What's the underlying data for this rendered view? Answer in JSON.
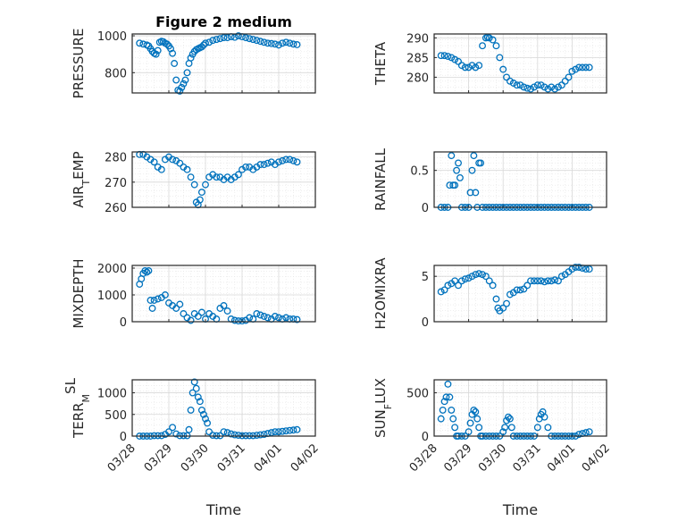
{
  "figure": {
    "title": "Figure 2 medium",
    "marker_color": "#0072bd"
  },
  "chart_data": [
    {
      "type": "scatter",
      "title": "Figure 2 medium",
      "ylabel": "PRESSURE",
      "ylabel_html": "PRESSURE",
      "xlabel": "",
      "ylim": [
        690,
        1010
      ],
      "yticks": [
        800,
        1000
      ],
      "xlim": [
        0,
        5
      ],
      "grid": true,
      "x": [
        0.2,
        0.3,
        0.4,
        0.45,
        0.5,
        0.55,
        0.6,
        0.65,
        0.7,
        0.75,
        0.8,
        0.85,
        0.9,
        0.95,
        1.0,
        1.05,
        1.1,
        1.15,
        1.2,
        1.25,
        1.3,
        1.35,
        1.4,
        1.45,
        1.5,
        1.55,
        1.6,
        1.65,
        1.7,
        1.75,
        1.8,
        1.85,
        1.9,
        1.95,
        2.0,
        2.1,
        2.2,
        2.3,
        2.4,
        2.5,
        2.6,
        2.7,
        2.8,
        2.9,
        3.0,
        3.1,
        3.2,
        3.3,
        3.4,
        3.5,
        3.6,
        3.7,
        3.8,
        3.9,
        4.0,
        4.1,
        4.2,
        4.3,
        4.4,
        4.5
      ],
      "y": [
        960,
        955,
        950,
        945,
        930,
        915,
        905,
        900,
        920,
        965,
        970,
        968,
        960,
        955,
        945,
        930,
        905,
        850,
        760,
        705,
        700,
        720,
        740,
        760,
        800,
        850,
        880,
        900,
        915,
        925,
        930,
        935,
        940,
        950,
        960,
        965,
        975,
        980,
        985,
        990,
        990,
        995,
        992,
        1000,
        995,
        990,
        985,
        980,
        975,
        970,
        965,
        960,
        958,
        955,
        950,
        960,
        965,
        960,
        955,
        952
      ]
    },
    {
      "type": "scatter",
      "ylabel": "THETA",
      "ylabel_html": "THETA",
      "xlabel": "",
      "ylim": [
        276,
        291
      ],
      "yticks": [
        280,
        285,
        290
      ],
      "xlim": [
        0,
        5
      ],
      "grid": true,
      "x": [
        0.2,
        0.3,
        0.4,
        0.5,
        0.6,
        0.7,
        0.8,
        0.9,
        1.0,
        1.1,
        1.2,
        1.3,
        1.4,
        1.5,
        1.55,
        1.6,
        1.7,
        1.8,
        1.9,
        2.0,
        2.1,
        2.2,
        2.3,
        2.4,
        2.5,
        2.6,
        2.7,
        2.8,
        2.9,
        3.0,
        3.1,
        3.2,
        3.3,
        3.4,
        3.5,
        3.6,
        3.7,
        3.8,
        3.9,
        4.0,
        4.1,
        4.2,
        4.3,
        4.4,
        4.5
      ],
      "y": [
        285.5,
        285.5,
        285.3,
        285,
        284.5,
        284,
        283,
        282.5,
        282.5,
        283,
        282.5,
        283,
        288,
        290,
        290.2,
        290,
        289.5,
        288,
        285,
        282,
        280,
        279,
        278.5,
        278,
        278,
        277.5,
        277.2,
        277,
        277.5,
        278,
        278,
        277.5,
        277,
        277.5,
        277,
        277.5,
        278,
        279,
        280,
        281.5,
        282,
        282.5,
        282.5,
        282.5,
        282.5
      ]
    },
    {
      "type": "scatter",
      "ylabel": "AIR_TEMP",
      "ylabel_html": "AIR<tspan baseline-shift='sub' font-size='11'>T</tspan>EMP",
      "xlabel": "",
      "ylim": [
        260,
        282
      ],
      "yticks": [
        260,
        270,
        280
      ],
      "xlim": [
        0,
        5
      ],
      "grid": true,
      "x": [
        0.2,
        0.3,
        0.4,
        0.5,
        0.6,
        0.7,
        0.8,
        0.9,
        1.0,
        1.1,
        1.2,
        1.3,
        1.4,
        1.5,
        1.6,
        1.7,
        1.75,
        1.8,
        1.85,
        1.9,
        2.0,
        2.1,
        2.2,
        2.3,
        2.4,
        2.5,
        2.6,
        2.7,
        2.8,
        2.9,
        3.0,
        3.1,
        3.2,
        3.3,
        3.4,
        3.5,
        3.6,
        3.7,
        3.8,
        3.9,
        4.0,
        4.1,
        4.2,
        4.3,
        4.4,
        4.5
      ],
      "y": [
        281,
        281,
        280,
        279,
        278,
        276,
        275,
        279,
        280,
        279,
        278.5,
        277.5,
        276,
        275,
        272,
        269,
        262,
        261,
        263,
        266,
        269,
        272,
        273,
        272,
        272,
        271,
        272,
        271,
        272,
        273,
        275,
        276,
        276,
        275,
        276,
        277,
        277,
        277.5,
        278,
        277,
        278,
        278.5,
        279,
        279,
        278.5,
        278
      ]
    },
    {
      "type": "scatter",
      "ylabel": "RAINFALL",
      "ylabel_html": "RAINFALL",
      "xlabel": "",
      "ylim": [
        0,
        0.75
      ],
      "yticks": [
        0,
        0.5
      ],
      "xlim": [
        0,
        5
      ],
      "grid": true,
      "x": [
        0.2,
        0.3,
        0.4,
        0.45,
        0.5,
        0.55,
        0.6,
        0.65,
        0.7,
        0.75,
        0.8,
        0.9,
        1.0,
        1.05,
        1.1,
        1.15,
        1.2,
        1.25,
        1.3,
        1.35,
        1.4,
        1.5,
        1.6,
        1.7,
        1.8,
        1.9,
        2.0,
        2.1,
        2.2,
        2.3,
        2.4,
        2.5,
        2.6,
        2.7,
        2.8,
        2.9,
        3.0,
        3.1,
        3.2,
        3.3,
        3.4,
        3.5,
        3.6,
        3.7,
        3.8,
        3.9,
        4.0,
        4.1,
        4.2,
        4.3,
        4.4,
        4.5
      ],
      "y": [
        0,
        0,
        0,
        0.3,
        0.7,
        0.3,
        0.3,
        0.5,
        0.6,
        0.4,
        0,
        0,
        0,
        0.2,
        0.5,
        0.7,
        0.2,
        0,
        0.6,
        0.6,
        0,
        0,
        0,
        0,
        0,
        0,
        0,
        0,
        0,
        0,
        0,
        0,
        0,
        0,
        0,
        0,
        0,
        0,
        0,
        0,
        0,
        0,
        0,
        0,
        0,
        0,
        0,
        0,
        0,
        0,
        0,
        0
      ]
    },
    {
      "type": "scatter",
      "ylabel": "MIXDEPTH",
      "ylabel_html": "MIXDEPTH",
      "xlabel": "",
      "ylim": [
        0,
        2100
      ],
      "yticks": [
        0,
        1000,
        2000
      ],
      "xlim": [
        0,
        5
      ],
      "grid": true,
      "x": [
        0.2,
        0.25,
        0.3,
        0.35,
        0.4,
        0.45,
        0.5,
        0.55,
        0.6,
        0.7,
        0.8,
        0.9,
        1.0,
        1.1,
        1.2,
        1.3,
        1.4,
        1.5,
        1.6,
        1.7,
        1.8,
        1.9,
        2.0,
        2.1,
        2.2,
        2.3,
        2.4,
        2.5,
        2.6,
        2.7,
        2.8,
        2.9,
        3.0,
        3.1,
        3.2,
        3.3,
        3.4,
        3.5,
        3.6,
        3.7,
        3.8,
        3.9,
        4.0,
        4.1,
        4.2,
        4.3,
        4.4,
        4.5
      ],
      "y": [
        1400,
        1600,
        1800,
        1900,
        1850,
        1900,
        800,
        500,
        800,
        850,
        900,
        1000,
        700,
        600,
        500,
        650,
        300,
        150,
        50,
        300,
        200,
        350,
        100,
        300,
        200,
        100,
        500,
        600,
        400,
        100,
        50,
        30,
        30,
        50,
        150,
        100,
        300,
        250,
        200,
        150,
        100,
        200,
        150,
        100,
        150,
        100,
        100,
        80
      ]
    },
    {
      "type": "scatter",
      "ylabel": "H2OMIXRA",
      "ylabel_html": "H2OMIXRA",
      "xlabel": "",
      "ylim": [
        0,
        6.2
      ],
      "yticks": [
        0,
        5
      ],
      "xlim": [
        0,
        5
      ],
      "grid": true,
      "x": [
        0.2,
        0.3,
        0.4,
        0.5,
        0.6,
        0.7,
        0.8,
        0.9,
        1.0,
        1.1,
        1.2,
        1.3,
        1.4,
        1.5,
        1.6,
        1.7,
        1.8,
        1.85,
        1.9,
        2.0,
        2.1,
        2.2,
        2.3,
        2.4,
        2.5,
        2.6,
        2.7,
        2.8,
        2.9,
        3.0,
        3.1,
        3.2,
        3.3,
        3.4,
        3.5,
        3.6,
        3.7,
        3.8,
        3.9,
        4.0,
        4.1,
        4.2,
        4.3,
        4.4,
        4.5
      ],
      "y": [
        3.3,
        3.5,
        4,
        4.2,
        4.5,
        4,
        4.5,
        4.7,
        4.8,
        5,
        5.2,
        5.3,
        5.2,
        5,
        4.5,
        4,
        2.5,
        1.5,
        1.2,
        1.5,
        2,
        3,
        3.2,
        3.5,
        3.5,
        3.6,
        4,
        4.5,
        4.5,
        4.5,
        4.5,
        4.4,
        4.5,
        4.5,
        4.6,
        4.5,
        5,
        5.2,
        5.5,
        5.8,
        6,
        6,
        5.9,
        5.8,
        5.8
      ]
    },
    {
      "type": "scatter",
      "ylabel": "TERR_MSL",
      "ylabel_html": "TERR<tspan baseline-shift='sub' font-size='11'>M</tspan><tspan baseline-shift='super'>SL</tspan>",
      "xlabel": "Time",
      "ylim": [
        0,
        1300
      ],
      "yticks": [
        0,
        500,
        1000
      ],
      "xlim": [
        0,
        5
      ],
      "grid": true,
      "xticklabels": [
        "03/28",
        "03/29",
        "03/30",
        "03/31",
        "04/01",
        "04/02"
      ],
      "x": [
        0.2,
        0.3,
        0.4,
        0.5,
        0.6,
        0.7,
        0.8,
        0.9,
        1.0,
        1.1,
        1.2,
        1.3,
        1.4,
        1.5,
        1.55,
        1.6,
        1.65,
        1.7,
        1.75,
        1.8,
        1.85,
        1.9,
        1.95,
        2.0,
        2.05,
        2.1,
        2.2,
        2.3,
        2.4,
        2.5,
        2.6,
        2.7,
        2.8,
        2.9,
        3.0,
        3.1,
        3.2,
        3.3,
        3.4,
        3.5,
        3.6,
        3.7,
        3.8,
        3.9,
        4.0,
        4.1,
        4.2,
        4.3,
        4.4,
        4.5
      ],
      "y": [
        0,
        0,
        0,
        0,
        10,
        10,
        10,
        40,
        100,
        200,
        50,
        10,
        10,
        10,
        150,
        600,
        1000,
        1250,
        1100,
        900,
        800,
        600,
        500,
        400,
        300,
        100,
        20,
        10,
        10,
        100,
        80,
        50,
        30,
        20,
        10,
        10,
        10,
        10,
        20,
        30,
        40,
        60,
        80,
        100,
        100,
        110,
        120,
        130,
        140,
        150
      ]
    },
    {
      "type": "scatter",
      "ylabel": "SUN_FLUX",
      "ylabel_html": "SUN<tspan baseline-shift='sub' font-size='11'>F</tspan>LUX",
      "xlabel": "Time",
      "ylim": [
        0,
        650
      ],
      "yticks": [
        0,
        500
      ],
      "xlim": [
        0,
        5
      ],
      "grid": true,
      "xticklabels": [
        "03/28",
        "03/29",
        "03/30",
        "03/31",
        "04/01",
        "04/02"
      ],
      "x": [
        0.2,
        0.25,
        0.3,
        0.35,
        0.4,
        0.45,
        0.5,
        0.55,
        0.6,
        0.65,
        0.7,
        0.8,
        0.9,
        1.0,
        1.05,
        1.1,
        1.15,
        1.2,
        1.25,
        1.3,
        1.35,
        1.4,
        1.5,
        1.6,
        1.7,
        1.8,
        1.9,
        2.0,
        2.05,
        2.1,
        2.15,
        2.2,
        2.25,
        2.3,
        2.4,
        2.5,
        2.6,
        2.7,
        2.8,
        2.9,
        3.0,
        3.05,
        3.1,
        3.15,
        3.2,
        3.3,
        3.4,
        3.5,
        3.6,
        3.7,
        3.8,
        3.9,
        4.0,
        4.1,
        4.2,
        4.3,
        4.4,
        4.5
      ],
      "y": [
        200,
        300,
        400,
        450,
        600,
        450,
        300,
        200,
        100,
        0,
        0,
        0,
        0,
        50,
        150,
        250,
        300,
        280,
        200,
        100,
        0,
        0,
        0,
        0,
        0,
        0,
        0,
        50,
        100,
        180,
        220,
        200,
        100,
        0,
        0,
        0,
        0,
        0,
        0,
        0,
        100,
        200,
        250,
        280,
        220,
        100,
        0,
        0,
        0,
        0,
        0,
        0,
        0,
        0,
        20,
        30,
        40,
        50
      ]
    }
  ]
}
